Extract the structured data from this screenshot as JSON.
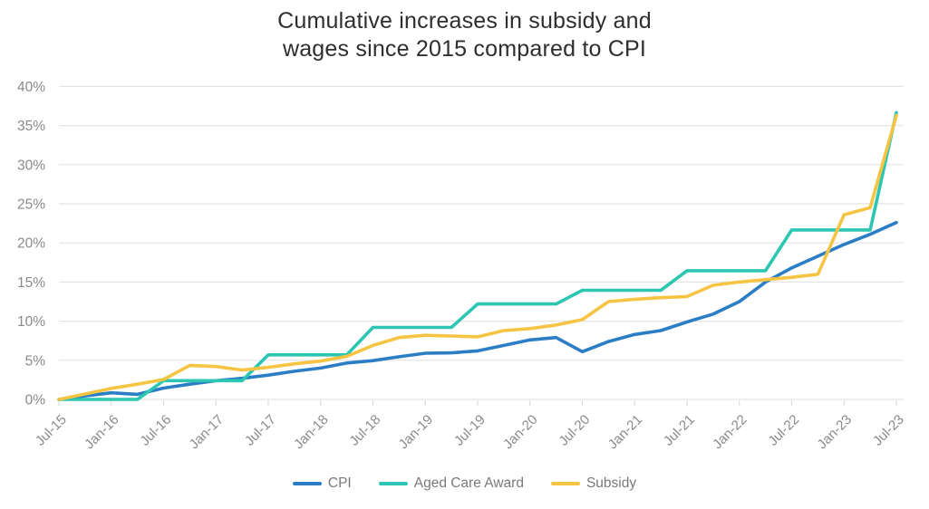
{
  "chart_data": {
    "type": "line",
    "title": "Cumulative increases in subsidy and wages since 2015 compared to CPI",
    "title_lines": [
      "Cumulative increases in subsidy and",
      "wages since 2015 compared to CPI"
    ],
    "grid": "horizontal",
    "legend_position": "bottom",
    "ylim": [
      0,
      40
    ],
    "y_tick_values": [
      0,
      5,
      10,
      15,
      20,
      25,
      30,
      35,
      40
    ],
    "y_tick_labels": [
      "0%",
      "5%",
      "10%",
      "15%",
      "20%",
      "25%",
      "30%",
      "35%",
      "40%"
    ],
    "x_tick_labels": [
      "Jul-15",
      "Jan-16",
      "Jul-16",
      "Jan-17",
      "Jul-17",
      "Jan-18",
      "Jul-18",
      "Jan-19",
      "Jul-19",
      "Jan-20",
      "Jul-20",
      "Jan-21",
      "Jul-21",
      "Jan-22",
      "Jul-22",
      "Jan-23",
      "Jul-23"
    ],
    "x": [
      "Jul-15",
      "Oct-15",
      "Jan-16",
      "Apr-16",
      "Jul-16",
      "Oct-16",
      "Jan-17",
      "Apr-17",
      "Jul-17",
      "Oct-17",
      "Jan-18",
      "Apr-18",
      "Jul-18",
      "Oct-18",
      "Jan-19",
      "Apr-19",
      "Jul-19",
      "Oct-19",
      "Jan-20",
      "Apr-20",
      "Jul-20",
      "Oct-20",
      "Jan-21",
      "Apr-21",
      "Jul-21",
      "Oct-21",
      "Jan-22",
      "Apr-22",
      "Jul-22",
      "Oct-22",
      "Jan-23",
      "Apr-23",
      "Jul-23"
    ],
    "series": [
      {
        "name": "CPI",
        "color": "#2b7ec5",
        "values": [
          0,
          0.45,
          0.85,
          0.65,
          1.45,
          1.95,
          2.4,
          2.7,
          3.1,
          3.6,
          4.0,
          4.65,
          4.95,
          5.45,
          5.9,
          5.95,
          6.2,
          6.9,
          7.6,
          7.9,
          6.1,
          7.4,
          8.3,
          8.8,
          9.9,
          10.9,
          12.5,
          15.0,
          16.8,
          18.3,
          19.8,
          21.1,
          22.6
        ]
      },
      {
        "name": "Aged Care Award",
        "color": "#2cc6b3",
        "values": [
          0,
          0,
          0,
          0,
          2.4,
          2.4,
          2.4,
          2.4,
          5.7,
          5.7,
          5.7,
          5.7,
          9.2,
          9.2,
          9.2,
          9.2,
          12.2,
          12.2,
          12.2,
          12.2,
          13.95,
          13.95,
          13.95,
          13.95,
          16.45,
          16.45,
          16.45,
          16.45,
          21.65,
          21.65,
          21.65,
          21.65,
          36.65
        ]
      },
      {
        "name": "Subsidy",
        "color": "#f6c443",
        "values": [
          0,
          0.7,
          1.4,
          1.95,
          2.55,
          4.35,
          4.2,
          3.75,
          4.1,
          4.55,
          4.9,
          5.5,
          6.9,
          7.9,
          8.2,
          8.1,
          8.0,
          8.8,
          9.05,
          9.5,
          10.2,
          12.5,
          12.8,
          13.0,
          13.15,
          14.6,
          15.0,
          15.3,
          15.6,
          16.0,
          23.6,
          24.5,
          36.3
        ]
      }
    ],
    "axis_colors": {
      "grid": "#e4e4e4",
      "tick": "#dddddd",
      "label": "#8a8a8a"
    }
  }
}
